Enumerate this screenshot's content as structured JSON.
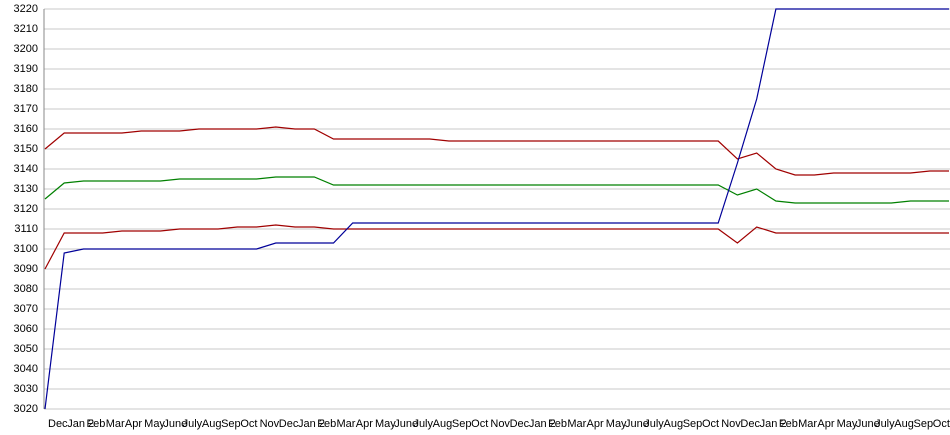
{
  "chart_data": {
    "type": "line",
    "categories": [
      "Dec",
      "Jan 2",
      "Feb",
      "Mar",
      "Apr",
      "May",
      "June",
      "July",
      "Aug",
      "Sep",
      "Oct",
      "Nov",
      "Dec",
      "Jan 2",
      "Feb",
      "Mar",
      "Apr",
      "May",
      "June",
      "July",
      "Aug",
      "Sep",
      "Oct",
      "Nov",
      "Dec",
      "Jan 2",
      "Feb",
      "Mar",
      "Apr",
      "May",
      "June",
      "July",
      "Aug",
      "Sep",
      "Oct",
      "Nov",
      "Dec",
      "Jan 2",
      "Feb",
      "Mar",
      "Apr",
      "May",
      "June",
      "July",
      "Aug",
      "Sep",
      "Oct",
      "Nov"
    ],
    "ylim": [
      3020,
      3220
    ],
    "yticks": [
      3020,
      3030,
      3040,
      3050,
      3060,
      3070,
      3080,
      3090,
      3100,
      3110,
      3120,
      3130,
      3140,
      3150,
      3160,
      3170,
      3180,
      3190,
      3200,
      3210,
      3220
    ],
    "grid": true,
    "series": [
      {
        "color": "#a00000",
        "values": [
          3150,
          3158,
          3158,
          3158,
          3158,
          3159,
          3159,
          3159,
          3160,
          3160,
          3160,
          3160,
          3161,
          3160,
          3160,
          3155,
          3155,
          3155,
          3155,
          3155,
          3155,
          3154,
          3154,
          3154,
          3154,
          3154,
          3154,
          3154,
          3154,
          3154,
          3154,
          3154,
          3154,
          3154,
          3154,
          3154,
          3145,
          3148,
          3140,
          3137,
          3137,
          3138,
          3138,
          3138,
          3138,
          3138,
          3139,
          3139
        ]
      },
      {
        "color": "#008000",
        "values": [
          3125,
          3133,
          3134,
          3134,
          3134,
          3134,
          3134,
          3135,
          3135,
          3135,
          3135,
          3135,
          3136,
          3136,
          3136,
          3132,
          3132,
          3132,
          3132,
          3132,
          3132,
          3132,
          3132,
          3132,
          3132,
          3132,
          3132,
          3132,
          3132,
          3132,
          3132,
          3132,
          3132,
          3132,
          3132,
          3132,
          3127,
          3130,
          3124,
          3123,
          3123,
          3123,
          3123,
          3123,
          3123,
          3124,
          3124,
          3124
        ]
      },
      {
        "color": "#a00000",
        "values": [
          3090,
          3108,
          3108,
          3108,
          3109,
          3109,
          3109,
          3110,
          3110,
          3110,
          3111,
          3111,
          3112,
          3111,
          3111,
          3110,
          3110,
          3110,
          3110,
          3110,
          3110,
          3110,
          3110,
          3110,
          3110,
          3110,
          3110,
          3110,
          3110,
          3110,
          3110,
          3110,
          3110,
          3110,
          3110,
          3110,
          3103,
          3111,
          3108,
          3108,
          3108,
          3108,
          3108,
          3108,
          3108,
          3108,
          3108,
          3108
        ]
      },
      {
        "color": "#000099",
        "values": [
          3020,
          3098,
          3100,
          3100,
          3100,
          3100,
          3100,
          3100,
          3100,
          3100,
          3100,
          3100,
          3103,
          3103,
          3103,
          3103,
          3113,
          3113,
          3113,
          3113,
          3113,
          3113,
          3113,
          3113,
          3113,
          3113,
          3113,
          3113,
          3113,
          3113,
          3113,
          3113,
          3113,
          3113,
          3113,
          3113,
          3143,
          3175,
          3220,
          3220,
          3220,
          3220,
          3220,
          3220,
          3220,
          3220,
          3220,
          3220
        ]
      }
    ]
  }
}
